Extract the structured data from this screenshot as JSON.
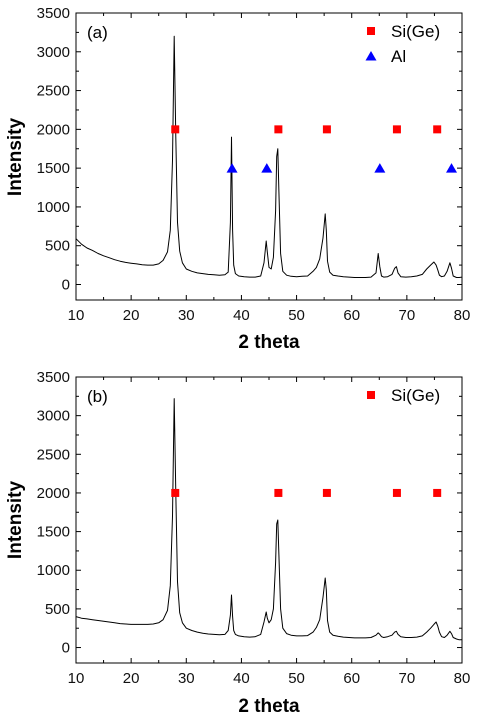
{
  "chart_data": [
    {
      "type": "line",
      "panel_label": "(a)",
      "xlabel": "2 theta",
      "ylabel": "Intensity",
      "xlim": [
        10,
        80
      ],
      "ylim": [
        -200,
        3500
      ],
      "xticks": [
        "10",
        "20",
        "30",
        "40",
        "50",
        "60",
        "70",
        "80"
      ],
      "yticks": [
        "0",
        "500",
        "1000",
        "1500",
        "2000",
        "2500",
        "3000",
        "3500"
      ],
      "legend_position": "top-right",
      "colors": {
        "line": "#000000",
        "square": "#ff0000",
        "triangle": "#0000ff"
      },
      "legend": [
        {
          "label": "Si(Ge)",
          "marker": "square"
        },
        {
          "label": "Al",
          "marker": "triangle"
        }
      ],
      "series": [
        {
          "x": [
            10,
            11,
            12,
            13,
            14,
            15,
            16,
            17,
            18,
            19,
            20,
            21,
            22,
            23,
            24,
            25,
            25.8,
            26.6,
            27.1,
            27.5,
            27.8,
            28.1,
            28.4,
            28.8,
            29.3,
            30,
            31,
            32,
            33,
            34,
            35,
            36,
            37,
            37.6,
            38,
            38.2,
            38.4,
            38.6,
            38.9,
            39.5,
            40.5,
            41.5,
            42.5,
            43.5,
            44.1,
            44.5,
            44.7,
            45,
            45.4,
            45.8,
            46.2,
            46.4,
            46.6,
            46.8,
            47.1,
            47.5,
            48.2,
            49,
            50,
            51,
            52,
            53,
            53.6,
            54.2,
            54.8,
            55.2,
            55.4,
            55.6,
            56,
            56.6,
            57.5,
            58.5,
            59.5,
            60.5,
            61.5,
            62.5,
            63.5,
            64.4,
            64.8,
            65.1,
            65.4,
            65.8,
            66.5,
            67.3,
            67.8,
            68.1,
            68.4,
            68.9,
            69.8,
            70.8,
            71.8,
            72.8,
            73.6,
            74.3,
            74.9,
            75.3,
            75.6,
            75.9,
            76.3,
            76.8,
            77.3,
            77.8,
            78.1,
            78.4,
            79,
            79.5,
            80
          ],
          "y": [
            590,
            520,
            470,
            440,
            400,
            370,
            345,
            320,
            300,
            285,
            275,
            265,
            255,
            250,
            250,
            265,
            310,
            420,
            700,
            1600,
            3200,
            1900,
            800,
            430,
            280,
            200,
            170,
            150,
            140,
            130,
            125,
            120,
            125,
            160,
            800,
            1900,
            700,
            250,
            140,
            110,
            100,
            95,
            95,
            110,
            280,
            560,
            420,
            220,
            200,
            350,
            950,
            1650,
            1750,
            1200,
            400,
            170,
            120,
            105,
            100,
            105,
            110,
            170,
            220,
            330,
            600,
            910,
            700,
            300,
            160,
            120,
            110,
            100,
            95,
            90,
            90,
            90,
            95,
            150,
            400,
            230,
            110,
            95,
            100,
            130,
            210,
            230,
            150,
            100,
            95,
            100,
            110,
            130,
            200,
            250,
            290,
            250,
            190,
            120,
            100,
            110,
            170,
            280,
            210,
            110,
            90,
            90,
            95
          ]
        }
      ],
      "markers": [
        {
          "marker": "square",
          "x": [
            28,
            46.7,
            55.5,
            68.2,
            75.5
          ],
          "y": [
            2000,
            2000,
            2000,
            2000,
            2000
          ]
        },
        {
          "marker": "triangle",
          "x": [
            38.3,
            44.6,
            65.1,
            78.1
          ],
          "y": [
            1500,
            1500,
            1500,
            1500
          ]
        }
      ]
    },
    {
      "type": "line",
      "panel_label": "(b)",
      "xlabel": "2 theta",
      "ylabel": "Intensity",
      "xlim": [
        10,
        80
      ],
      "ylim": [
        -200,
        3500
      ],
      "xticks": [
        "10",
        "20",
        "30",
        "40",
        "50",
        "60",
        "70",
        "80"
      ],
      "yticks": [
        "0",
        "500",
        "1000",
        "1500",
        "2000",
        "2500",
        "3000",
        "3500"
      ],
      "legend_position": "top-right",
      "colors": {
        "line": "#000000",
        "square": "#ff0000"
      },
      "legend": [
        {
          "label": "Si(Ge)",
          "marker": "square"
        }
      ],
      "series": [
        {
          "x": [
            10,
            11,
            12,
            13,
            14,
            15,
            16,
            17,
            18,
            19,
            20,
            21,
            22,
            23,
            24,
            25,
            25.8,
            26.6,
            27.1,
            27.5,
            27.8,
            28.1,
            28.4,
            28.8,
            29.3,
            30,
            31,
            32,
            33,
            34,
            35,
            36,
            37,
            37.6,
            38,
            38.2,
            38.4,
            38.6,
            38.9,
            39.5,
            40.5,
            41.5,
            42.5,
            43.5,
            44.1,
            44.5,
            44.7,
            45,
            45.4,
            45.8,
            46.2,
            46.4,
            46.6,
            46.8,
            47.1,
            47.5,
            48.2,
            49,
            50,
            51,
            52,
            53,
            53.6,
            54.2,
            54.8,
            55.2,
            55.4,
            55.6,
            56,
            56.6,
            57.5,
            58.5,
            59.5,
            60.5,
            61.5,
            62.5,
            63.5,
            64.4,
            64.8,
            65.1,
            65.4,
            65.8,
            66.5,
            67.3,
            67.8,
            68.1,
            68.4,
            68.9,
            69.8,
            70.8,
            71.8,
            72.8,
            73.6,
            74.3,
            74.9,
            75.3,
            75.6,
            75.9,
            76.3,
            76.8,
            77.3,
            77.8,
            78.1,
            78.4,
            79,
            79.5,
            80
          ],
          "y": [
            400,
            380,
            370,
            360,
            350,
            340,
            330,
            320,
            310,
            305,
            300,
            300,
            300,
            300,
            305,
            320,
            360,
            480,
            800,
            1700,
            3220,
            2000,
            850,
            450,
            320,
            250,
            220,
            200,
            185,
            175,
            170,
            165,
            170,
            220,
            420,
            680,
            400,
            220,
            170,
            150,
            140,
            135,
            140,
            170,
            330,
            460,
            380,
            320,
            360,
            500,
            1100,
            1600,
            1650,
            1200,
            500,
            250,
            180,
            160,
            150,
            150,
            155,
            200,
            260,
            360,
            650,
            900,
            750,
            350,
            200,
            160,
            145,
            135,
            130,
            125,
            125,
            125,
            130,
            160,
            190,
            170,
            140,
            130,
            140,
            160,
            200,
            210,
            170,
            140,
            130,
            130,
            135,
            150,
            200,
            250,
            300,
            330,
            280,
            200,
            140,
            130,
            160,
            210,
            180,
            130,
            110,
            100,
            100
          ]
        }
      ],
      "markers": [
        {
          "marker": "square",
          "x": [
            28,
            46.7,
            55.5,
            68.2,
            75.5
          ],
          "y": [
            2000,
            2000,
            2000,
            2000,
            2000
          ]
        }
      ]
    }
  ]
}
